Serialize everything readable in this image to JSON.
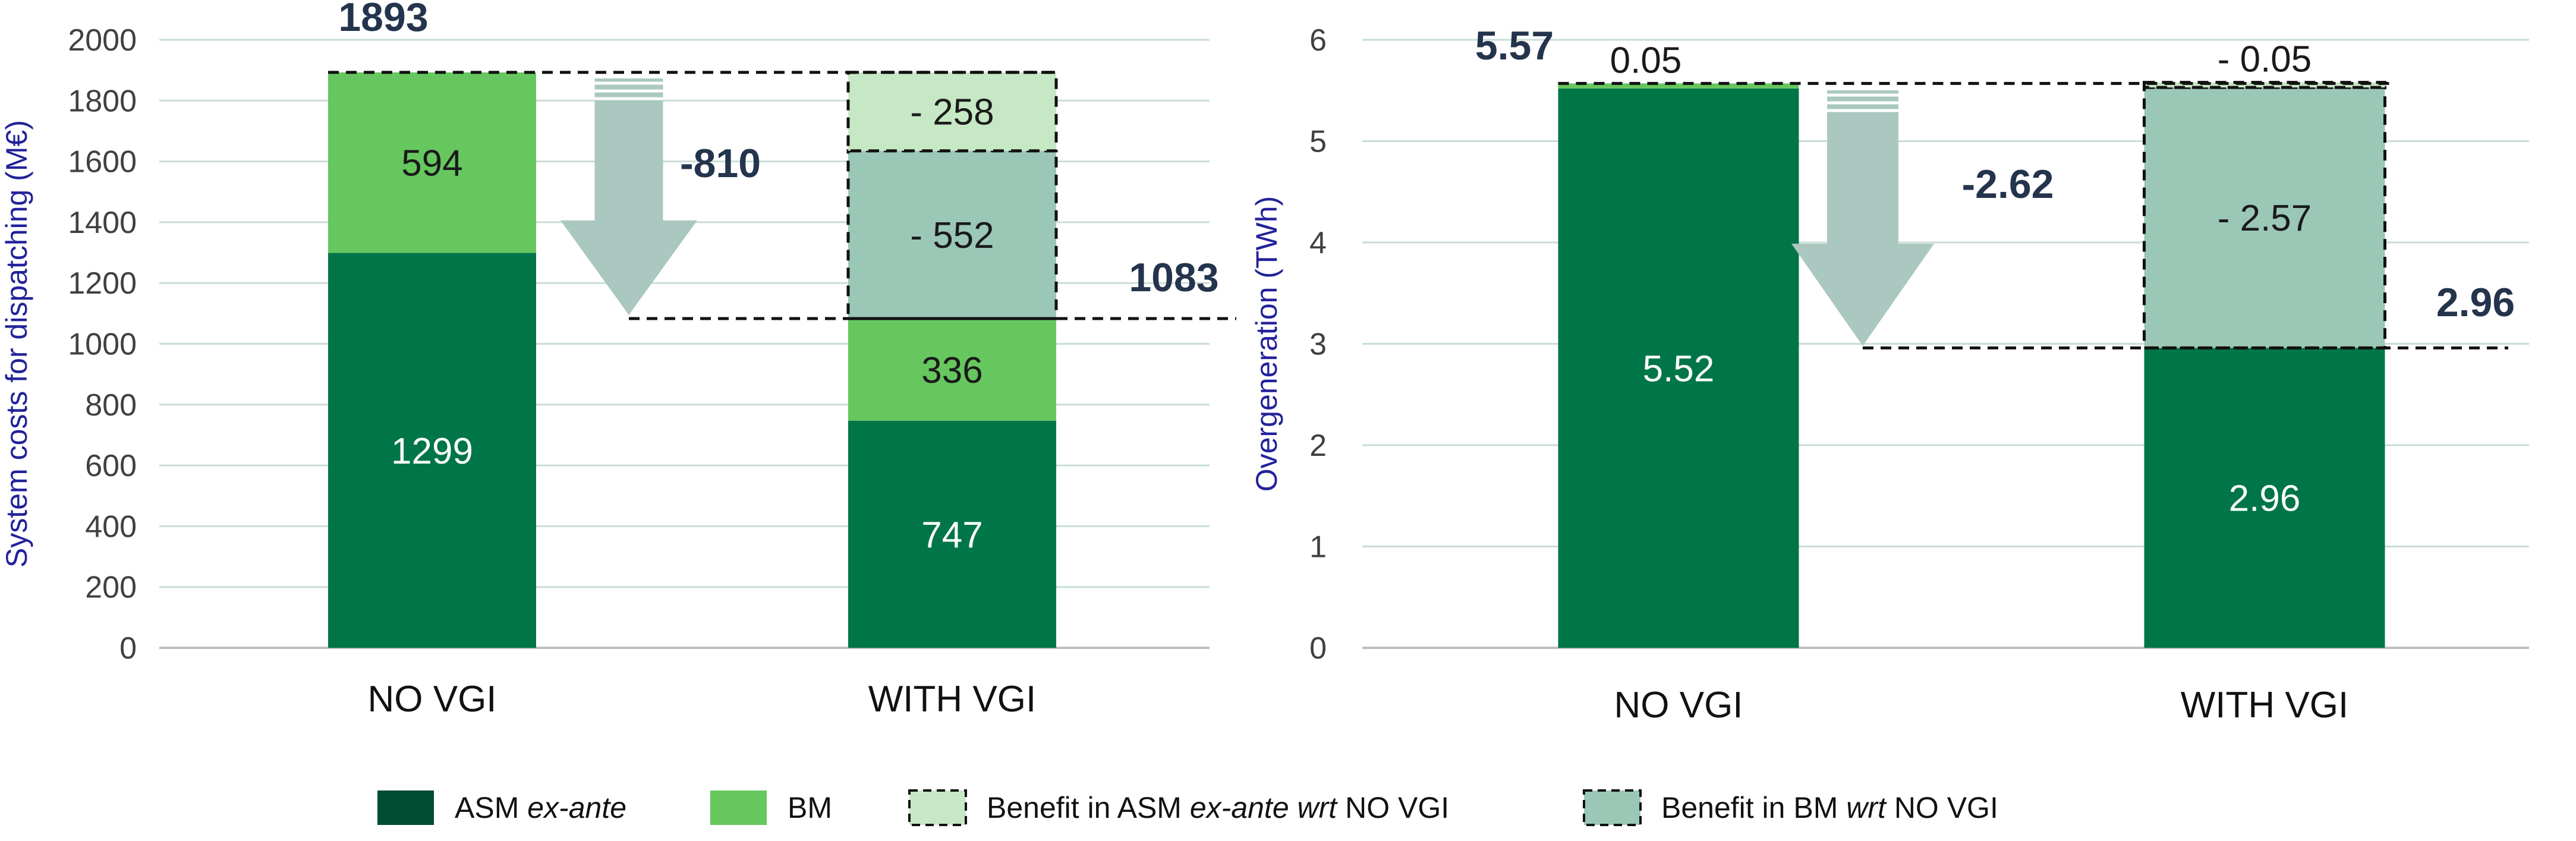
{
  "chart_data": [
    {
      "type": "bar",
      "stacked": true,
      "categories": [
        "NO VGI",
        "WITH VGI"
      ],
      "ylabel": "System costs for dispatching (M€)",
      "ylim": [
        0,
        2000
      ],
      "yticks": [
        0,
        200,
        400,
        600,
        800,
        1000,
        1200,
        1400,
        1600,
        1800,
        2000
      ],
      "series": [
        {
          "name": "ASM ex-ante",
          "values": [
            1299,
            747
          ],
          "labels": [
            "1299",
            "747"
          ]
        },
        {
          "name": "BM",
          "values": [
            594,
            336
          ],
          "labels": [
            "594",
            "336"
          ]
        },
        {
          "name": "Benefit in BM wrt NO VGI",
          "values": [
            0,
            552
          ],
          "labels": [
            "",
            "-  552"
          ]
        },
        {
          "name": "Benefit in ASM ex-ante wrt NO VGI",
          "values": [
            0,
            258
          ],
          "labels": [
            "",
            "-  258"
          ]
        }
      ],
      "top_label": "1893",
      "reduced_label": "1083",
      "reduced_value": 1083,
      "delta_label": "-810"
    },
    {
      "type": "bar",
      "stacked": true,
      "categories": [
        "NO VGI",
        "WITH VGI"
      ],
      "ylabel": "Overgeneration (TWh)",
      "ylim": [
        0,
        6
      ],
      "yticks": [
        0,
        1,
        2,
        3,
        4,
        5,
        6
      ],
      "series": [
        {
          "name": "ASM ex-ante",
          "values": [
            5.52,
            2.96
          ],
          "labels": [
            "5.52",
            "2.96"
          ]
        },
        {
          "name": "BM",
          "values": [
            0.05,
            0
          ],
          "labels": [
            "0.05",
            ""
          ]
        },
        {
          "name": "Benefit in BM wrt NO VGI",
          "values": [
            0,
            2.57
          ],
          "labels": [
            "",
            "-  2.57"
          ]
        },
        {
          "name": "Benefit in ASM ex-ante wrt NO VGI",
          "values": [
            0,
            0.05
          ],
          "labels": [
            "",
            "-  0.05"
          ]
        }
      ],
      "top_label": "5.57",
      "reduced_label": "2.96",
      "reduced_value": 2.96,
      "delta_label": "-2.62"
    }
  ],
  "legend": [
    {
      "prefix": "ASM ",
      "em": "ex-ante",
      "suffix": "",
      "em2": "",
      "tail": ""
    },
    {
      "prefix": "BM",
      "em": "",
      "suffix": "",
      "em2": "",
      "tail": ""
    },
    {
      "prefix": "Benefit in ASM ",
      "em": "ex-ante",
      "suffix": " ",
      "em2": "wrt",
      "tail": " NO VGI"
    },
    {
      "prefix": "Benefit in BM ",
      "em": "wrt",
      "suffix": " NO VGI",
      "em2": "",
      "tail": ""
    }
  ],
  "colors": {
    "asm": "#007548",
    "bm": "#66c75f",
    "benefit_asm": "#c7e8c4",
    "benefit_bm": "#9bc7b7",
    "arrow": "#aac8c0",
    "grid": "#c9ddd7",
    "axis": "#bfbfbf",
    "dark_text": "#24344d",
    "legend_asm": "#004d33"
  }
}
